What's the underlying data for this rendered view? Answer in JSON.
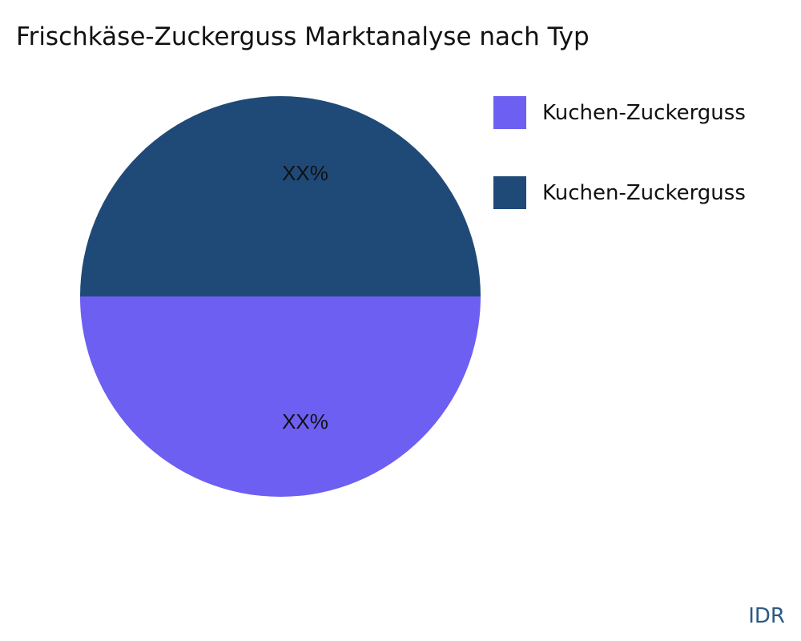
{
  "chart_data": {
    "type": "pie",
    "title": "Frischkäse-Zuckerguss Marktanalyse nach Typ",
    "slices": [
      {
        "name": "Kuchen-Zuckerguss",
        "value": 50,
        "label": "XX%",
        "color": "#6c5ff2"
      },
      {
        "name": "Kuchen-Zuckerguss",
        "value": 50,
        "label": "XX%",
        "color": "#1f4a78"
      }
    ],
    "legend_position": "top-right"
  },
  "watermark": "IDR"
}
